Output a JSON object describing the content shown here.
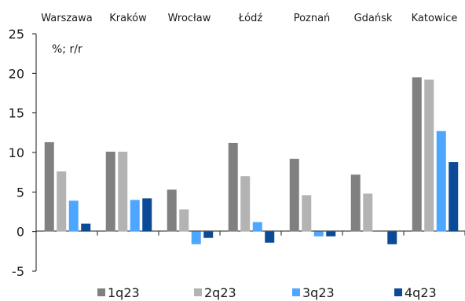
{
  "chart_data": {
    "type": "bar",
    "unit_label": "%; r/r",
    "categories": [
      "Warszawa",
      "Kraków",
      "Wrocław",
      "Łódź",
      "Poznań",
      "Gdańsk",
      "Katowice"
    ],
    "series": [
      {
        "name": "1q23",
        "color": "#808080",
        "values": [
          11.3,
          10.1,
          5.3,
          11.2,
          9.2,
          7.2,
          19.5
        ]
      },
      {
        "name": "2q23",
        "color": "#b3b3b3",
        "values": [
          7.6,
          10.1,
          2.8,
          7.0,
          4.6,
          4.8,
          19.2
        ]
      },
      {
        "name": "3q23",
        "color": "#4da6ff",
        "values": [
          3.9,
          4.0,
          -1.6,
          1.2,
          -0.6,
          0,
          12.7
        ]
      },
      {
        "name": "4q23",
        "color": "#0a4a96",
        "values": [
          1.0,
          4.2,
          -0.8,
          -1.4,
          -0.6,
          -1.6,
          8.8
        ]
      }
    ],
    "ylim": [
      -5,
      25
    ],
    "yticks": [
      -5,
      0,
      5,
      10,
      15,
      20,
      25
    ],
    "legend": "bottom",
    "grid": false
  }
}
